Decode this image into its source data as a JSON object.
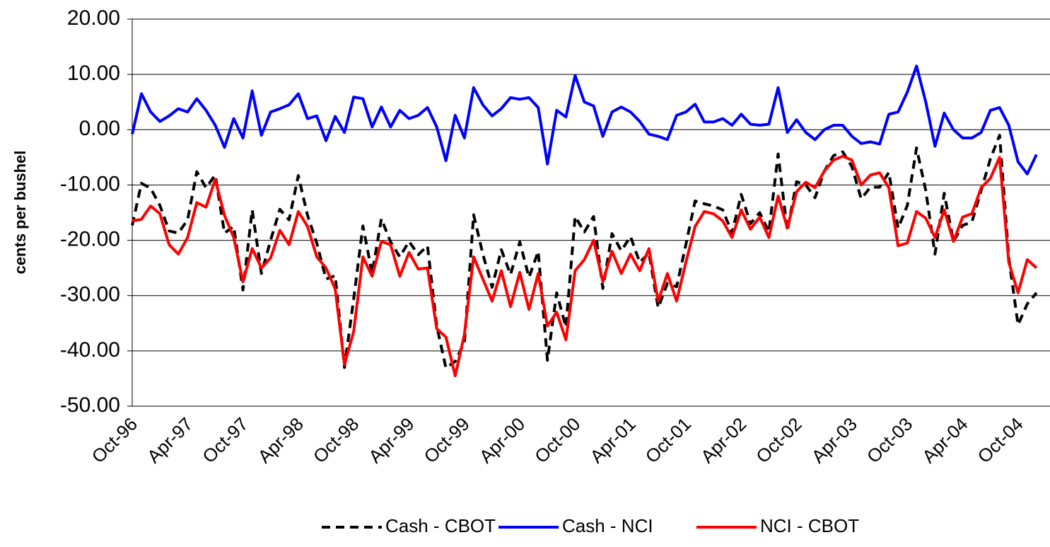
{
  "chart_data": {
    "type": "line",
    "ylabel": "cents per bushel",
    "categories": [
      "Oct-96",
      null,
      null,
      null,
      null,
      null,
      "Apr-97",
      null,
      null,
      null,
      null,
      null,
      "Oct-97",
      null,
      null,
      null,
      null,
      null,
      "Apr-98",
      null,
      null,
      null,
      null,
      null,
      "Oct-98",
      null,
      null,
      null,
      null,
      null,
      "Apr-99",
      null,
      null,
      null,
      null,
      null,
      "Oct-99",
      null,
      null,
      null,
      null,
      null,
      "Apr-00",
      null,
      null,
      null,
      null,
      null,
      "Oct-00",
      null,
      null,
      null,
      null,
      null,
      "Apr-01",
      null,
      null,
      null,
      null,
      null,
      "Oct-01",
      null,
      null,
      null,
      null,
      null,
      "Apr-02",
      null,
      null,
      null,
      null,
      null,
      "Oct-02",
      null,
      null,
      null,
      null,
      null,
      "Apr-03",
      null,
      null,
      null,
      null,
      null,
      "Oct-03",
      null,
      null,
      null,
      null,
      null,
      "Apr-04",
      null,
      null,
      null,
      null,
      null,
      "Oct-04",
      null,
      null
    ],
    "series": [
      {
        "name": "Cash - CBOT",
        "color": "#000000",
        "style": "dashed",
        "values": [
          -17.3,
          -9.7,
          -10.6,
          -13.7,
          -18.3,
          -18.7,
          -16.3,
          -7.6,
          -10.5,
          -8.2,
          -18.7,
          -17.5,
          -29.0,
          -14.5,
          -26.0,
          -20.0,
          -14.4,
          -16.3,
          -8.3,
          -15.5,
          -20.5,
          -27.0,
          -26.4,
          -43.0,
          -30.6,
          -17.4,
          -26.0,
          -16.1,
          -20.3,
          -23.0,
          -20.2,
          -22.6,
          -21.0,
          -35.5,
          -43.1,
          -41.9,
          -38.5,
          -15.4,
          -22.5,
          -28.5,
          -21.7,
          -26.2,
          -20.3,
          -26.7,
          -22.0,
          -41.7,
          -29.5,
          -35.7,
          -15.7,
          -18.5,
          -15.7,
          -28.7,
          -18.8,
          -21.9,
          -19.3,
          -24.0,
          -22.3,
          -32.2,
          -27.8,
          -28.4,
          -20.8,
          -12.9,
          -13.4,
          -13.8,
          -14.5,
          -18.7,
          -11.7,
          -17.0,
          -15.0,
          -18.5,
          -4.4,
          -18.3,
          -9.4,
          -10.0,
          -12.3,
          -7.5,
          -4.7,
          -4.0,
          -6.7,
          -12.5,
          -10.4,
          -10.4,
          -7.7,
          -17.8,
          -13.7,
          -3.3,
          -11.0,
          -22.5,
          -11.5,
          -20.2,
          -17.3,
          -16.7,
          -11.0,
          -5.3,
          -1.0,
          -23.2,
          -35.3,
          -31.5,
          -29.5
        ]
      },
      {
        "name": "Cash - NCI",
        "color": "#0000ff",
        "style": "solid",
        "values": [
          -0.8,
          6.5,
          3.2,
          1.5,
          2.5,
          3.8,
          3.2,
          5.6,
          3.5,
          0.8,
          -3.2,
          2.0,
          -1.5,
          7.0,
          -1.0,
          3.2,
          3.8,
          4.5,
          6.5,
          2.0,
          2.5,
          -2.0,
          2.4,
          -0.5,
          5.9,
          5.6,
          0.5,
          4.1,
          0.5,
          3.5,
          2.0,
          2.6,
          4.0,
          0.5,
          -5.6,
          2.6,
          -1.5,
          7.6,
          4.5,
          2.5,
          3.8,
          5.8,
          5.5,
          5.8,
          4.0,
          -6.2,
          3.5,
          2.3,
          9.8,
          5.0,
          4.3,
          -1.2,
          3.2,
          4.1,
          3.2,
          1.5,
          -0.8,
          -1.2,
          -1.8,
          2.6,
          3.2,
          4.6,
          1.4,
          1.4,
          2.0,
          0.8,
          2.8,
          1.0,
          0.8,
          1.0,
          7.6,
          -0.5,
          1.8,
          -0.5,
          -1.8,
          0.0,
          0.8,
          0.8,
          -1.2,
          -2.5,
          -2.2,
          -2.6,
          2.8,
          3.2,
          6.8,
          11.5,
          5.0,
          -3.0,
          3.0,
          0.0,
          -1.5,
          -1.5,
          -0.5,
          3.5,
          4.0,
          0.8,
          -5.8,
          -8.0,
          -4.5
        ]
      },
      {
        "name": "NCI - CBOT",
        "color": "#ff0000",
        "style": "solid",
        "values": [
          -16.5,
          -16.2,
          -13.8,
          -15.2,
          -20.8,
          -22.5,
          -19.5,
          -13.2,
          -14.0,
          -9.0,
          -15.5,
          -19.5,
          -27.5,
          -21.5,
          -25.0,
          -23.2,
          -18.2,
          -20.8,
          -14.8,
          -17.5,
          -23.0,
          -25.0,
          -28.8,
          -42.5,
          -36.5,
          -23.0,
          -26.5,
          -20.2,
          -20.8,
          -26.5,
          -22.2,
          -25.2,
          -25.0,
          -36.0,
          -37.5,
          -44.5,
          -37.0,
          -23.0,
          -27.0,
          -31.0,
          -25.5,
          -32.0,
          -25.8,
          -32.5,
          -26.0,
          -35.5,
          -33.0,
          -38.0,
          -25.5,
          -23.5,
          -20.0,
          -27.5,
          -22.0,
          -26.0,
          -22.5,
          -25.5,
          -21.5,
          -31.0,
          -26.0,
          -31.0,
          -24.0,
          -17.5,
          -14.8,
          -15.2,
          -16.5,
          -19.5,
          -14.5,
          -18.0,
          -15.8,
          -19.5,
          -12.0,
          -17.8,
          -11.2,
          -9.5,
          -10.5,
          -7.5,
          -5.5,
          -4.8,
          -5.5,
          -10.0,
          -8.2,
          -7.8,
          -10.5,
          -21.0,
          -20.5,
          -14.8,
          -16.0,
          -19.5,
          -14.5,
          -20.2,
          -15.8,
          -15.2,
          -10.5,
          -8.8,
          -5.0,
          -24.0,
          -29.5,
          -23.5,
          -25.0
        ]
      }
    ],
    "ylim": [
      -50,
      20
    ],
    "yticks": [
      {
        "value": -50,
        "label": "-50.00"
      },
      {
        "value": -40,
        "label": "-40.00"
      },
      {
        "value": -30,
        "label": "-30.00"
      },
      {
        "value": -20,
        "label": "-20.00"
      },
      {
        "value": -10,
        "label": "-10.00"
      },
      {
        "value": 0,
        "label": "0.00"
      },
      {
        "value": 10,
        "label": "10.00"
      },
      {
        "value": 20,
        "label": "20.00"
      }
    ],
    "grid": true,
    "legend": "bottom"
  }
}
